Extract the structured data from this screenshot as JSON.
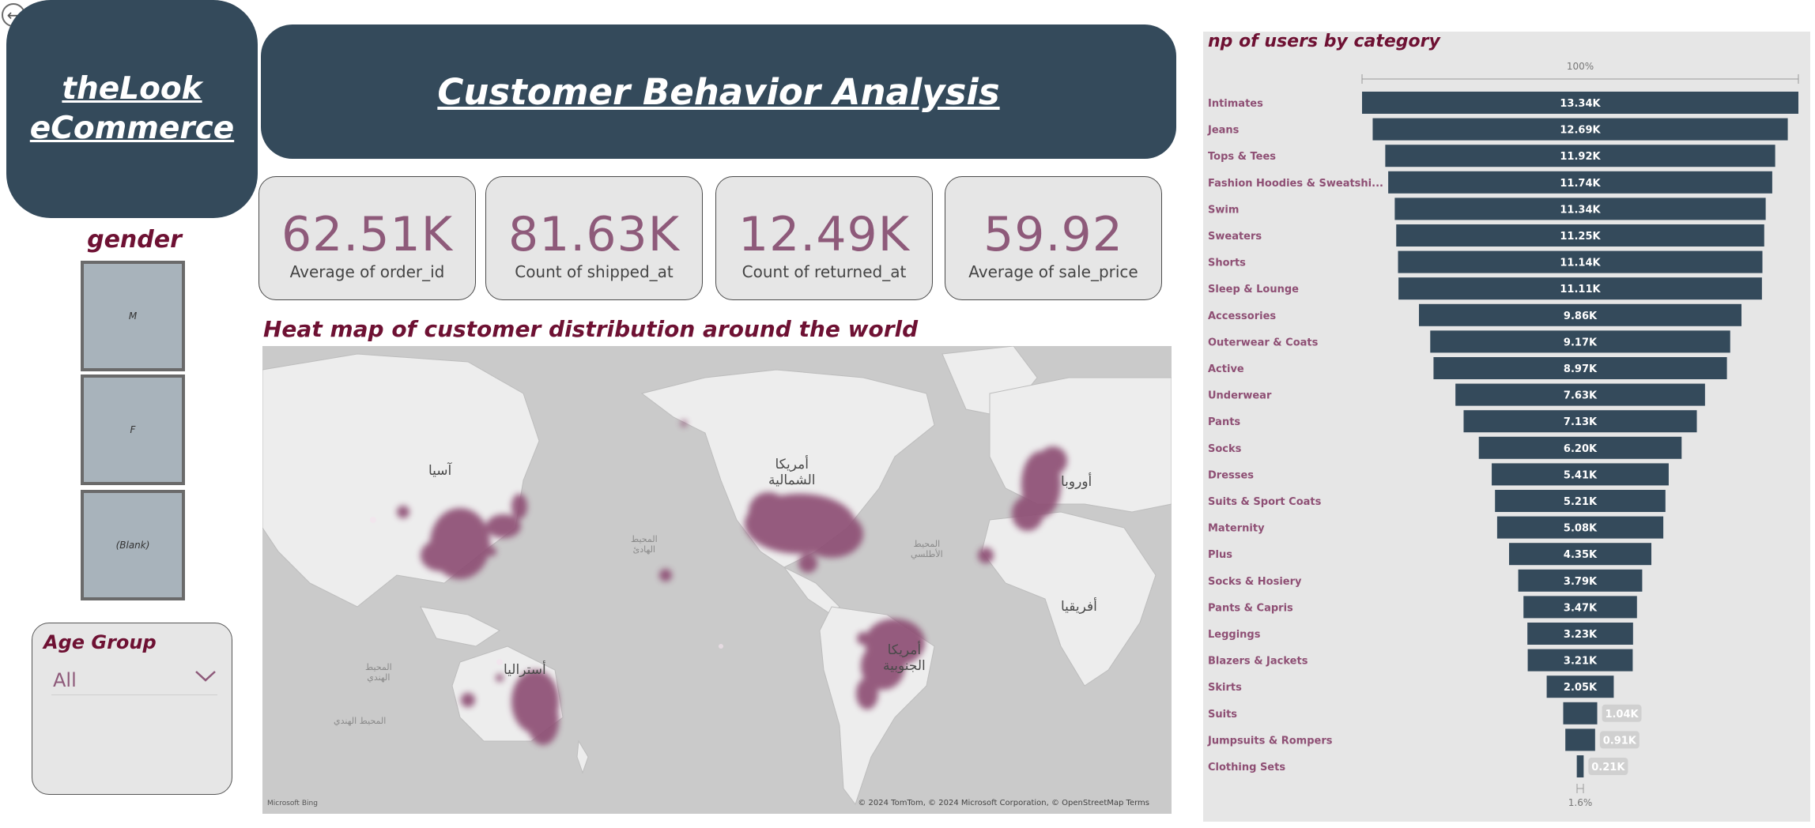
{
  "nav": {
    "back_icon": "back-arrow-icon"
  },
  "brand": {
    "text": "theLook \neCommerce"
  },
  "header": {
    "title": "Customer Behavior Analysis"
  },
  "kpis": [
    {
      "value": "62.51K",
      "label": "Average of order_id"
    },
    {
      "value": "81.63K",
      "label": "Count of shipped_at"
    },
    {
      "value": "12.49K",
      "label": "Count of returned_at"
    },
    {
      "value": "59.92",
      "label": "Average of sale_price"
    }
  ],
  "gender": {
    "title": "gender",
    "options": [
      "M",
      "F",
      "(Blank)"
    ]
  },
  "age_group": {
    "title": "Age Group",
    "selected": "All"
  },
  "map": {
    "title": "Heat map of customer distribution around the world",
    "labels": {
      "asia": "آسيا",
      "north_america": "أمريكا\nالشمالية",
      "europe": "أوروبا",
      "africa": "أفريقيا",
      "south_america": "أمريكا\nالجنوبية",
      "australia": "أستراليا"
    },
    "oceans": {
      "pacific": "المحيط\nالهادئ",
      "atlantic": "المحيط\nالأطلسي",
      "indian_1": "المحيط\nالهندي",
      "indian_2": "المحيط الهندي"
    },
    "attribution": "© 2024 TomTom, © 2024 Microsoft Corporation, © OpenStreetMap Terms",
    "provider": "Microsoft Bing",
    "heat_color": "#8e4f74"
  },
  "chart_data": {
    "type": "funnel",
    "title": "np of users by category",
    "top_label": "100%",
    "bottom_label": "1.6%",
    "bar_color": "#344a5b",
    "categories": [
      "Intimates",
      "Jeans",
      "Tops & Tees",
      "Fashion Hoodies & Sweatshi...",
      "Swim",
      "Sweaters",
      "Shorts",
      "Sleep & Lounge",
      "Accessories",
      "Outerwear & Coats",
      "Active",
      "Underwear",
      "Pants",
      "Socks",
      "Dresses",
      "Suits & Sport Coats",
      "Maternity",
      "Plus",
      "Socks & Hosiery",
      "Pants & Capris",
      "Leggings",
      "Blazers & Jackets",
      "Skirts",
      "Suits",
      "Jumpsuits & Rompers",
      "Clothing Sets"
    ],
    "values": [
      13340,
      12690,
      11920,
      11740,
      11340,
      11250,
      11140,
      11110,
      9860,
      9170,
      8970,
      7630,
      7130,
      6200,
      5410,
      5210,
      5080,
      4350,
      3790,
      3470,
      3230,
      3210,
      2050,
      1040,
      910,
      210
    ],
    "value_labels": [
      "13.34K",
      "12.69K",
      "11.92K",
      "11.74K",
      "11.34K",
      "11.25K",
      "11.14K",
      "11.11K",
      "9.86K",
      "9.17K",
      "8.97K",
      "7.63K",
      "7.13K",
      "6.20K",
      "5.41K",
      "5.21K",
      "5.08K",
      "4.35K",
      "3.79K",
      "3.47K",
      "3.23K",
      "3.21K",
      "2.05K",
      "1.04K",
      "0.91K",
      "0.21K"
    ]
  }
}
